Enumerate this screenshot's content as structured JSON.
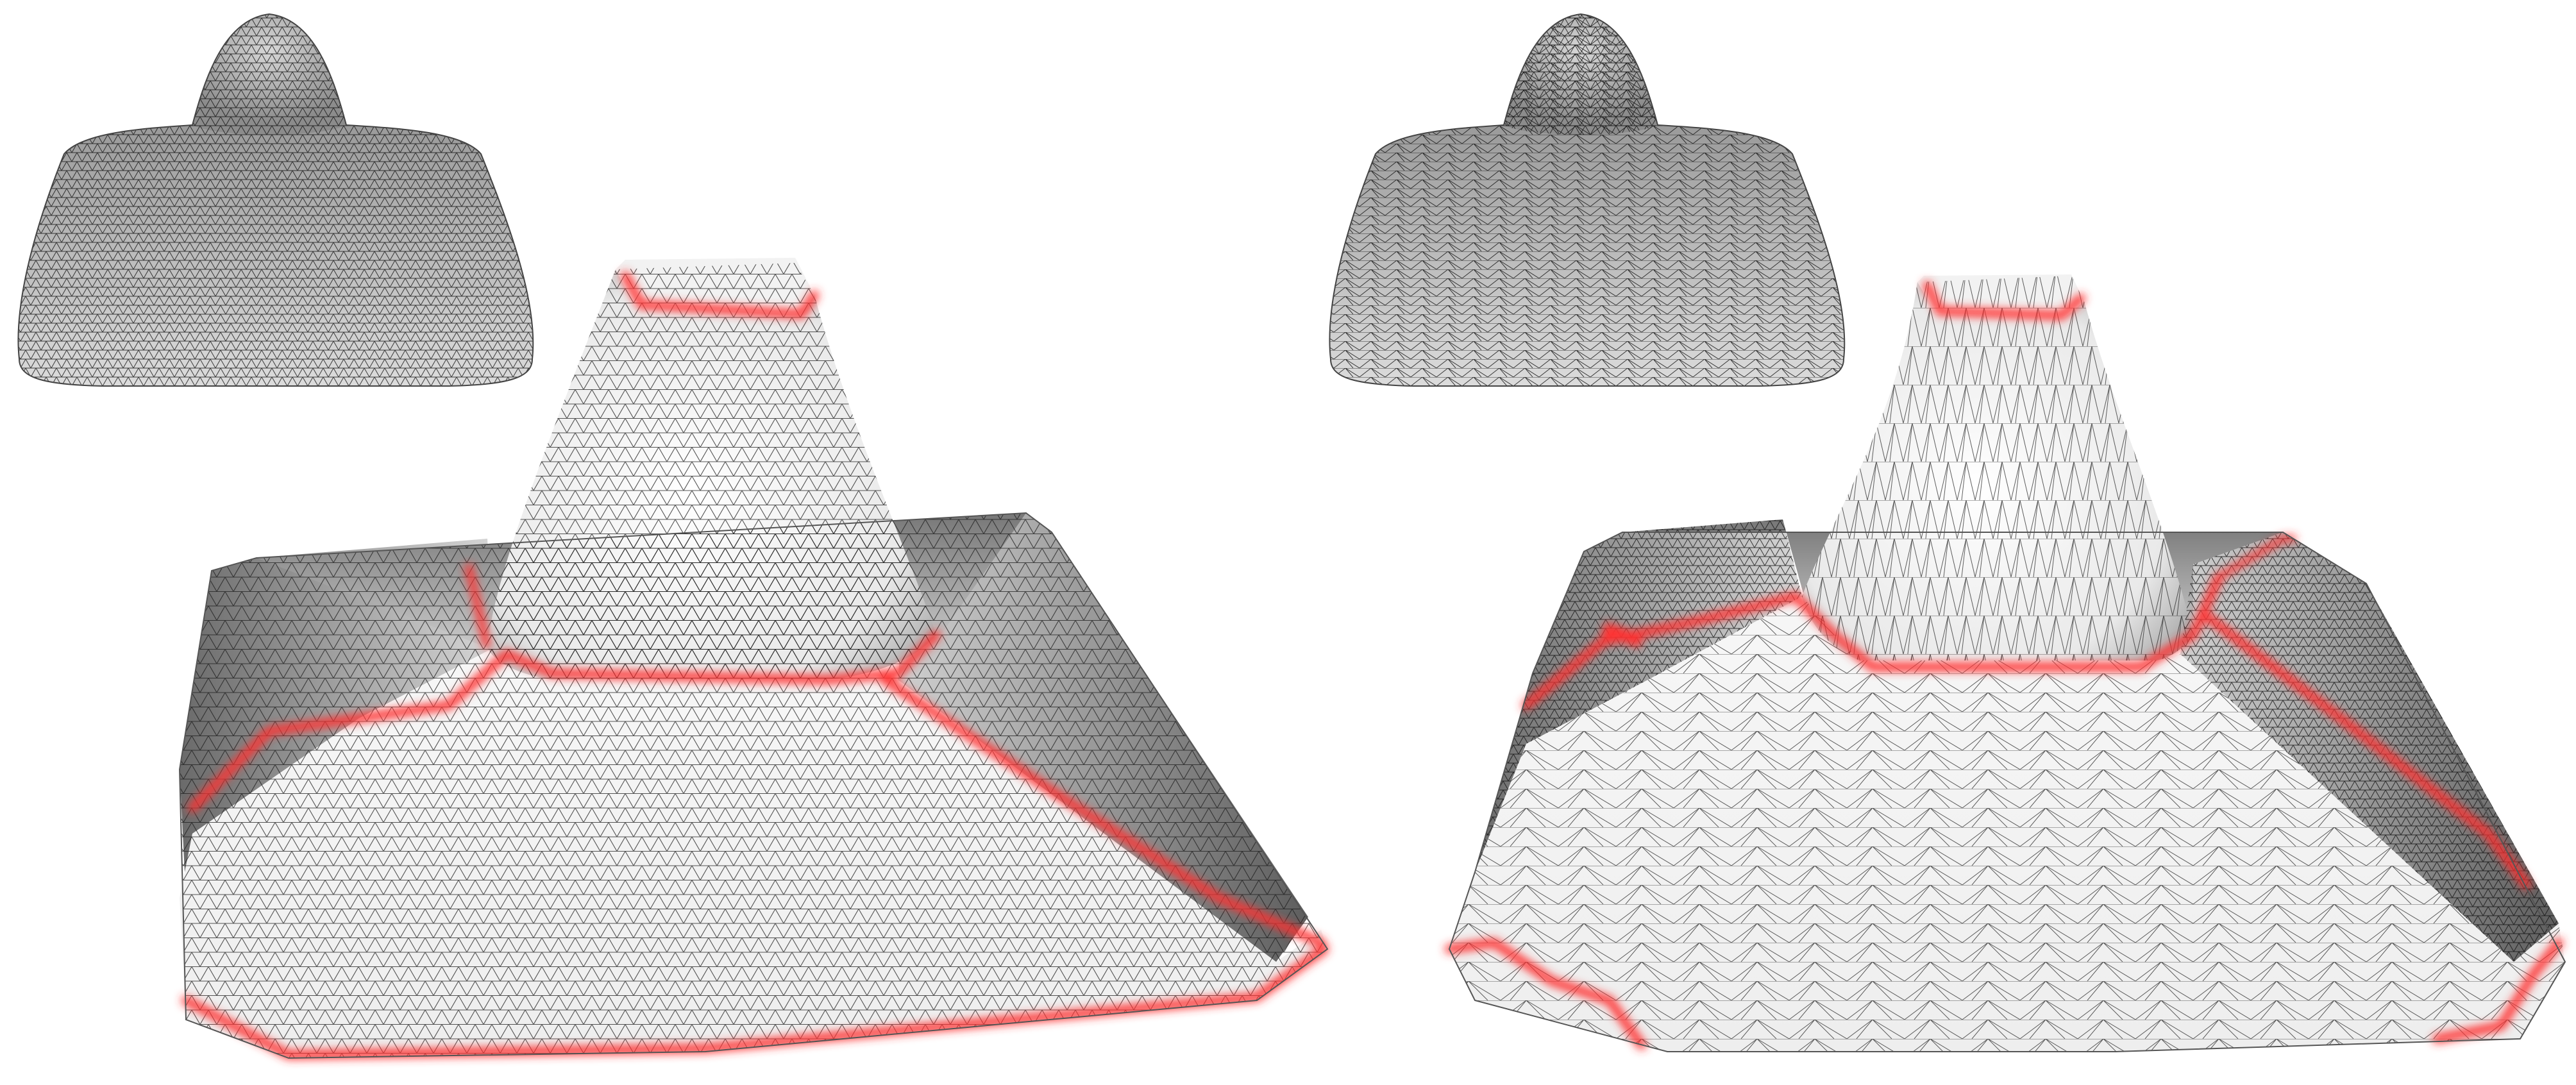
{
  "figure": {
    "background": "#ffffff",
    "mesh_fill_light": "#ffffff",
    "mesh_fill_dark": "#6f6f6f",
    "wireframe_color": "#1a1a1a",
    "feature_highlight_color": "#ff3b3b",
    "panels": [
      {
        "id": "left",
        "meshing": "uniform-isotropic",
        "views": [
          "thumbnail-original",
          "deformed-with-feature-lines"
        ]
      },
      {
        "id": "right",
        "meshing": "adaptive-anisotropic",
        "views": [
          "thumbnail-original",
          "deformed-with-feature-lines"
        ]
      }
    ]
  }
}
